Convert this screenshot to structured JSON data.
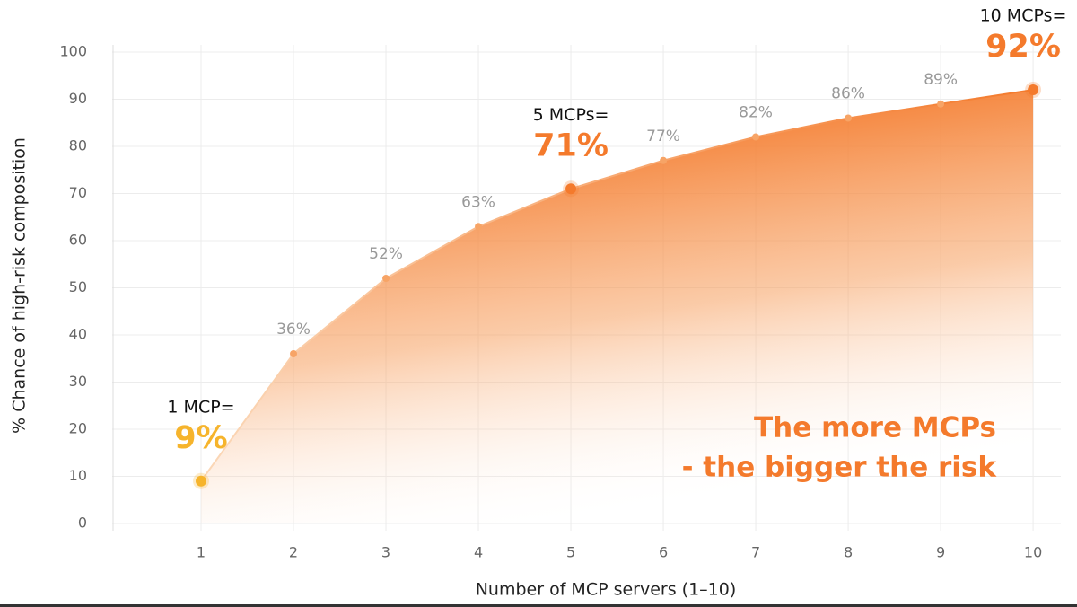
{
  "chart_data": {
    "type": "area-line",
    "x_label": "Number of MCP servers (1–10)",
    "y_label": "% Chance of high-risk composition",
    "x": [
      1,
      2,
      3,
      4,
      5,
      6,
      7,
      8,
      9,
      10
    ],
    "values": [
      9,
      36,
      52,
      63,
      71,
      77,
      82,
      86,
      89,
      92
    ],
    "value_labels": [
      "9%",
      "36%",
      "52%",
      "63%",
      "71%",
      "77%",
      "82%",
      "86%",
      "89%",
      "92%"
    ],
    "color": "#f47a2c",
    "start_color": "#f6b42c",
    "xlim": [
      0,
      10.3
    ],
    "xticks": [
      1,
      2,
      3,
      4,
      5,
      6,
      7,
      8,
      9,
      10
    ],
    "ylim": [
      0,
      100
    ],
    "yticks": [
      0,
      10,
      20,
      30,
      40,
      50,
      60,
      70,
      80,
      90,
      100
    ],
    "grid": true,
    "callouts": [
      {
        "x": 1,
        "text": "1 MCP=",
        "color": "#f6b42c"
      },
      {
        "x": 5,
        "text": "5 MCPs=",
        "color": "#f47a2c"
      },
      {
        "x": 10,
        "text": "10 MCPs=",
        "color": "#f47a2c"
      }
    ],
    "annotation": [
      "The more MCPs",
      "- the bigger the risk"
    ]
  }
}
